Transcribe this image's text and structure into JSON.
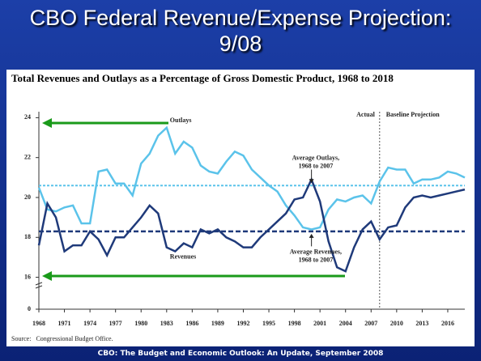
{
  "slide_title": "CBO Federal Revenue/Expense Projection: 9/08",
  "caption": "CBO: The Budget and Economic Outlook: An Update, September 2008",
  "chart_data": {
    "type": "line",
    "title": "Total Revenues and Outlays as a Percentage of Gross Domestic Product, 1968 to 2018",
    "source": "Source:   Congressional Budget Office.",
    "x": [
      1968,
      1969,
      1970,
      1971,
      1972,
      1973,
      1974,
      1975,
      1976,
      1977,
      1978,
      1979,
      1980,
      1981,
      1982,
      1983,
      1984,
      1985,
      1986,
      1987,
      1988,
      1989,
      1990,
      1991,
      1992,
      1993,
      1994,
      1995,
      1996,
      1997,
      1998,
      1999,
      2000,
      2001,
      2002,
      2003,
      2004,
      2005,
      2006,
      2007,
      2008,
      2009,
      2010,
      2011,
      2012,
      2013,
      2014,
      2015,
      2016,
      2017,
      2018
    ],
    "series": [
      {
        "name": "Outlays",
        "color": "#5bc3ea",
        "values": [
          20.5,
          19.4,
          19.3,
          19.5,
          19.6,
          18.7,
          18.7,
          21.3,
          21.4,
          20.7,
          20.7,
          20.1,
          21.7,
          22.2,
          23.1,
          23.5,
          22.2,
          22.8,
          22.5,
          21.6,
          21.3,
          21.2,
          21.8,
          22.3,
          22.1,
          21.4,
          21.0,
          20.6,
          20.3,
          19.6,
          19.1,
          18.5,
          18.4,
          18.5,
          19.4,
          19.9,
          19.8,
          20.0,
          20.1,
          19.7,
          20.8,
          21.5,
          21.4,
          21.4,
          20.7,
          20.9,
          20.9,
          21.0,
          21.3,
          21.2,
          21.0
        ]
      },
      {
        "name": "Revenues",
        "color": "#1f3a7a",
        "values": [
          17.6,
          19.7,
          19.0,
          17.3,
          17.6,
          17.6,
          18.3,
          17.9,
          17.1,
          18.0,
          18.0,
          18.5,
          19.0,
          19.6,
          19.2,
          17.5,
          17.3,
          17.7,
          17.5,
          18.4,
          18.2,
          18.4,
          18.0,
          17.8,
          17.5,
          17.5,
          18.0,
          18.4,
          18.8,
          19.2,
          19.9,
          20.0,
          20.9,
          19.8,
          17.8,
          16.5,
          16.3,
          17.5,
          18.4,
          18.8,
          17.9,
          18.5,
          18.6,
          19.5,
          20.0,
          20.1,
          20.0,
          20.1,
          20.2,
          20.3,
          20.4
        ]
      }
    ],
    "average_outlays": 20.6,
    "average_revenues": 18.3,
    "projection_start": 2008,
    "labels": {
      "actual": "Actual",
      "projection": "Baseline Projection",
      "avg_outlays": [
        "Average Outlays,",
        "1968 to 2007"
      ],
      "avg_revenues": [
        "Average Revenues,",
        "1968 to 2007"
      ]
    },
    "xlim": [
      1968,
      2018
    ],
    "xticks": [
      1968,
      1971,
      1974,
      1977,
      1980,
      1983,
      1986,
      1989,
      1992,
      1995,
      1998,
      2001,
      2004,
      2007,
      2010,
      2013,
      2016
    ],
    "ylim": [
      14.4,
      24.3
    ],
    "yticks": [
      0,
      16,
      18,
      20,
      22,
      24
    ],
    "axis_break": true
  }
}
